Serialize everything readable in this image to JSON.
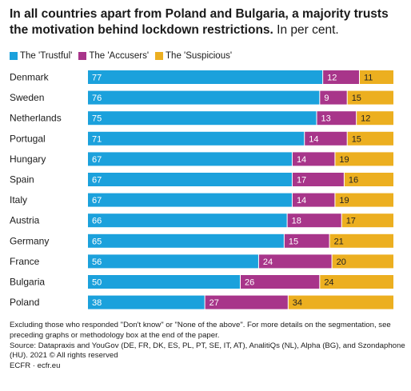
{
  "header": {
    "title_bold": "In all countries apart from Poland and Bulgaria, a majority trusts the motivation behind lockdown restrictions.",
    "title_rest": "In per cent."
  },
  "colors": {
    "trustful": "#1ba1dc",
    "accusers": "#a8358a",
    "suspicious": "#ecaf20"
  },
  "chart_data": {
    "type": "bar",
    "orientation": "horizontal",
    "stacked": true,
    "categories": [
      "Denmark",
      "Sweden",
      "Netherlands",
      "Portugal",
      "Hungary",
      "Spain",
      "Italy",
      "Austria",
      "Germany",
      "France",
      "Bulgaria",
      "Poland"
    ],
    "series": [
      {
        "name": "The 'Trustful'",
        "color": "#1ba1dc",
        "values": [
          77,
          76,
          75,
          71,
          67,
          67,
          67,
          66,
          65,
          56,
          50,
          38
        ]
      },
      {
        "name": "The 'Accusers'",
        "color": "#a8358a",
        "values": [
          12,
          9,
          13,
          14,
          14,
          17,
          14,
          18,
          15,
          24,
          26,
          27
        ]
      },
      {
        "name": "The 'Suspicious'",
        "color": "#ecaf20",
        "values": [
          11,
          15,
          12,
          15,
          19,
          16,
          19,
          17,
          21,
          20,
          24,
          34
        ]
      }
    ],
    "data_labels": true,
    "legend_position": "top-left",
    "grid": false
  },
  "footer": {
    "note": "Excluding those who responded \"Don't know\" or \"None of the above\". For more details on the segmentation, see preceding graphs or methodology box at the end of the paper.",
    "source": "Source: Datapraxis and YouGov (DE, FR, DK, ES, PL, PT, SE, IT, AT), AnalitiQs (NL), Alpha (BG), and Szondaphone (HU). 2021 © All rights reserved",
    "credit": "ECFR · ecfr.eu"
  }
}
